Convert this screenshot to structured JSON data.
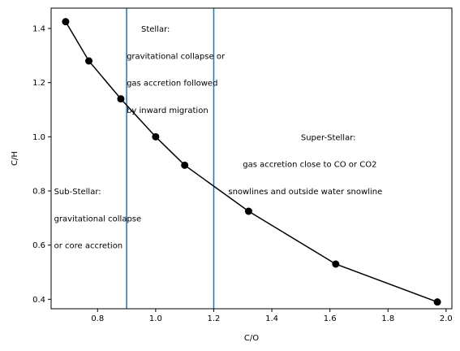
{
  "chart_data": {
    "type": "line",
    "xlabel": "C/O",
    "ylabel": "C/H",
    "xlim": [
      0.64,
      2.02
    ],
    "ylim": [
      0.365,
      1.475
    ],
    "xticks": [
      0.8,
      1.0,
      1.2,
      1.4,
      1.6,
      1.8,
      2.0
    ],
    "yticks": [
      0.4,
      0.6,
      0.8,
      1.0,
      1.2,
      1.4
    ],
    "grid": false,
    "series": [
      {
        "color": "#000000",
        "marker": "circle",
        "x": [
          0.69,
          0.77,
          0.88,
          1.0,
          1.1,
          1.32,
          1.62,
          1.97
        ],
        "y": [
          1.425,
          1.28,
          1.14,
          1.0,
          0.895,
          0.725,
          0.53,
          0.39
        ]
      }
    ],
    "vlines": [
      {
        "x": 0.9,
        "color": "#1f77b4"
      },
      {
        "x": 1.2,
        "color": "#1f77b4"
      }
    ],
    "annotations": [
      {
        "text": "Stellar:",
        "x": 0.95,
        "y": 1.4
      },
      {
        "text": "gravitational collapse or",
        "x": 0.9,
        "y": 1.3
      },
      {
        "text": "gas accretion followed",
        "x": 0.9,
        "y": 1.2
      },
      {
        "text": "by inward migration",
        "x": 0.9,
        "y": 1.1
      },
      {
        "text": "Super-Stellar:",
        "x": 1.5,
        "y": 1.0
      },
      {
        "text": "gas accretion close to CO or CO2",
        "x": 1.3,
        "y": 0.9
      },
      {
        "text": "snowlines and outside water snowline",
        "x": 1.25,
        "y": 0.8
      },
      {
        "text": "Sub-Stellar:",
        "x": 0.65,
        "y": 0.8
      },
      {
        "text": "gravitational collapse",
        "x": 0.65,
        "y": 0.7
      },
      {
        "text": "or core accretion",
        "x": 0.65,
        "y": 0.6
      }
    ]
  }
}
